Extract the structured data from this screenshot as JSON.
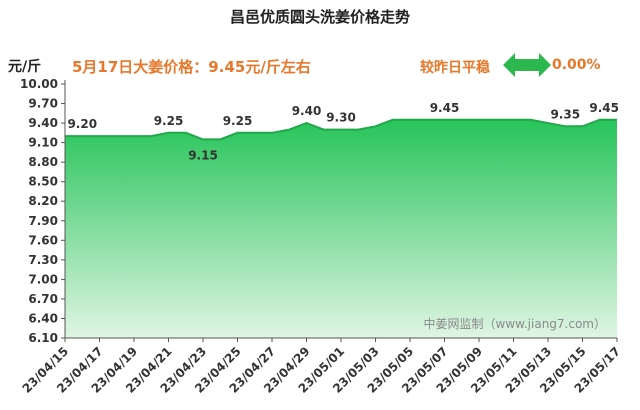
{
  "title": "昌邑优质圆头洗姜价格走势",
  "unit": "元/斤",
  "price_note": "5月17日大姜价格：9.45元/斤左右",
  "compare": {
    "label": "较昨日平稳",
    "value": "0.00%",
    "icon": "double-arrow-icon"
  },
  "watermark": "中姜网监制（www.jiang7.com）",
  "colors": {
    "fill_top": "#27c45a",
    "fill_bottom": "#dff5e3",
    "line": "#21a84a",
    "accent": "#e8772a",
    "arrow": "#2db84f"
  },
  "chart_data": {
    "type": "area",
    "title": "昌邑优质圆头洗姜价格走势",
    "ylabel": "元/斤",
    "xlabel": "",
    "ylim": [
      6.1,
      10.0
    ],
    "y_ticks": [
      "6.10",
      "6.40",
      "6.70",
      "7.00",
      "7.30",
      "7.60",
      "7.90",
      "8.20",
      "8.50",
      "8.80",
      "9.10",
      "9.40",
      "9.70",
      "10.00"
    ],
    "x_ticks": [
      "23/04/15",
      "23/04/17",
      "23/04/19",
      "23/04/21",
      "23/04/23",
      "23/04/25",
      "23/04/27",
      "23/04/29",
      "23/05/01",
      "23/05/03",
      "23/05/05",
      "23/05/07",
      "23/05/09",
      "23/05/11",
      "23/05/13",
      "23/05/15",
      "23/05/17"
    ],
    "x": [
      "23/04/15",
      "23/04/16",
      "23/04/17",
      "23/04/18",
      "23/04/19",
      "23/04/20",
      "23/04/21",
      "23/04/22",
      "23/04/23",
      "23/04/24",
      "23/04/25",
      "23/04/26",
      "23/04/27",
      "23/04/28",
      "23/04/29",
      "23/04/30",
      "23/05/01",
      "23/05/02",
      "23/05/03",
      "23/05/04",
      "23/05/05",
      "23/05/06",
      "23/05/07",
      "23/05/08",
      "23/05/09",
      "23/05/10",
      "23/05/11",
      "23/05/12",
      "23/05/13",
      "23/05/14",
      "23/05/15",
      "23/05/16",
      "23/05/17"
    ],
    "values": [
      9.2,
      9.2,
      9.2,
      9.2,
      9.2,
      9.2,
      9.25,
      9.25,
      9.15,
      9.15,
      9.25,
      9.25,
      9.25,
      9.3,
      9.4,
      9.3,
      9.3,
      9.3,
      9.35,
      9.45,
      9.45,
      9.45,
      9.45,
      9.45,
      9.45,
      9.45,
      9.45,
      9.45,
      9.4,
      9.35,
      9.35,
      9.45,
      9.45
    ],
    "data_labels": [
      {
        "x": "23/04/16",
        "text": "9.20"
      },
      {
        "x": "23/04/21",
        "text": "9.25"
      },
      {
        "x": "23/04/23",
        "text": "9.15"
      },
      {
        "x": "23/04/25",
        "text": "9.25"
      },
      {
        "x": "23/04/29",
        "text": "9.40"
      },
      {
        "x": "23/05/01",
        "text": "9.30"
      },
      {
        "x": "23/05/07",
        "text": "9.45"
      },
      {
        "x": "23/05/14",
        "text": "9.35"
      },
      {
        "x": "23/05/17",
        "text": "9.45"
      }
    ],
    "grid": false,
    "legend": "none"
  }
}
